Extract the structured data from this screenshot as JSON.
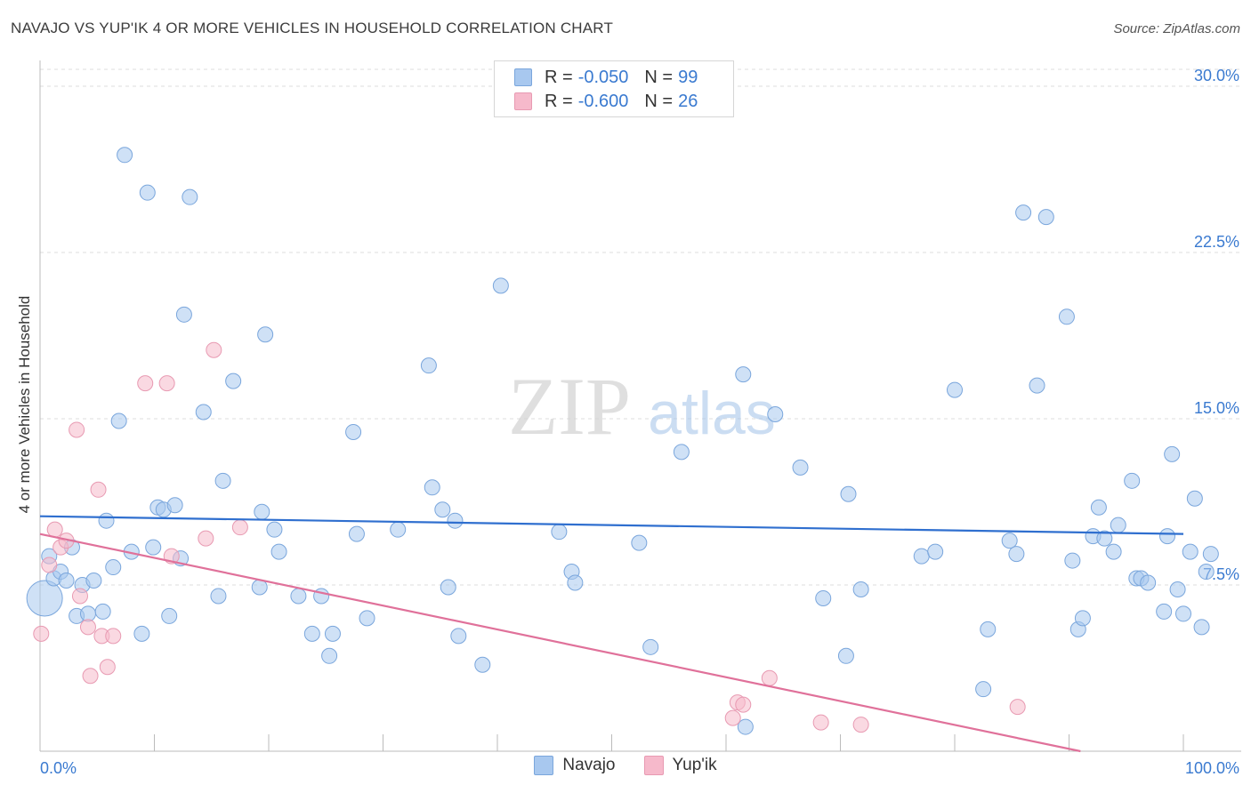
{
  "header": {
    "title": "NAVAJO VS YUP'IK 4 OR MORE VEHICLES IN HOUSEHOLD CORRELATION CHART",
    "source": "Source: ZipAtlas.com"
  },
  "watermark": {
    "zip": "ZIP",
    "atlas": "atlas"
  },
  "legend": {
    "rows": [
      {
        "r_label": "R =",
        "r_value": "-0.050",
        "n_label": "N =",
        "n_value": "99",
        "color": "#a8c8ef"
      },
      {
        "r_label": "R =",
        "r_value": "-0.600",
        "n_label": "N =",
        "n_value": "26",
        "color": "#f6b9cb"
      }
    ]
  },
  "chart_data": {
    "type": "scatter",
    "title": "NAVAJO VS YUP'IK 4 OR MORE VEHICLES IN HOUSEHOLD CORRELATION CHART",
    "xlabel": "",
    "ylabel": "4 or more Vehicles in Household",
    "xlim": [
      0,
      100
    ],
    "ylim": [
      0,
      31
    ],
    "x_tick_labels": [
      "0.0%",
      "100.0%"
    ],
    "y_ticks": [
      7.5,
      15.0,
      22.5,
      30.0
    ],
    "y_tick_labels": [
      "7.5%",
      "15.0%",
      "22.5%",
      "30.0%"
    ],
    "grid": true,
    "legend_position": "top-center",
    "series": [
      {
        "name": "Navajo",
        "color": "#a8c8ef",
        "stroke": "#7aa6dc",
        "trend": {
          "x": [
            0,
            100
          ],
          "y": [
            10.6,
            9.8
          ],
          "color": "#2f6fcf"
        },
        "points": [
          [
            0.4,
            6.9
          ],
          [
            0.8,
            8.8
          ],
          [
            1.2,
            7.8
          ],
          [
            1.8,
            8.1
          ],
          [
            2.3,
            7.7
          ],
          [
            2.8,
            9.2
          ],
          [
            3.2,
            6.1
          ],
          [
            3.7,
            7.5
          ],
          [
            4.2,
            6.2
          ],
          [
            4.7,
            7.7
          ],
          [
            5.5,
            6.3
          ],
          [
            5.8,
            10.4
          ],
          [
            6.4,
            8.3
          ],
          [
            6.9,
            14.9
          ],
          [
            7.4,
            26.9
          ],
          [
            8.0,
            9.0
          ],
          [
            8.9,
            5.3
          ],
          [
            9.4,
            25.2
          ],
          [
            9.9,
            9.2
          ],
          [
            10.3,
            11.0
          ],
          [
            10.8,
            10.9
          ],
          [
            11.3,
            6.1
          ],
          [
            11.8,
            11.1
          ],
          [
            12.3,
            8.7
          ],
          [
            12.6,
            19.7
          ],
          [
            13.1,
            25.0
          ],
          [
            14.3,
            15.3
          ],
          [
            15.6,
            7.0
          ],
          [
            16.0,
            12.2
          ],
          [
            16.9,
            16.7
          ],
          [
            19.2,
            7.4
          ],
          [
            19.4,
            10.8
          ],
          [
            19.7,
            18.8
          ],
          [
            20.5,
            10.0
          ],
          [
            20.9,
            9.0
          ],
          [
            22.6,
            7.0
          ],
          [
            23.8,
            5.3
          ],
          [
            24.6,
            7.0
          ],
          [
            25.3,
            4.3
          ],
          [
            25.6,
            5.3
          ],
          [
            27.4,
            14.4
          ],
          [
            27.7,
            9.8
          ],
          [
            28.6,
            6.0
          ],
          [
            31.3,
            10.0
          ],
          [
            34.0,
            17.4
          ],
          [
            34.3,
            11.9
          ],
          [
            35.2,
            10.9
          ],
          [
            35.7,
            7.4
          ],
          [
            36.3,
            10.4
          ],
          [
            36.6,
            5.2
          ],
          [
            38.7,
            3.9
          ],
          [
            40.3,
            21.0
          ],
          [
            45.4,
            9.9
          ],
          [
            46.5,
            8.1
          ],
          [
            46.8,
            7.6
          ],
          [
            52.4,
            9.4
          ],
          [
            53.4,
            4.7
          ],
          [
            56.1,
            13.5
          ],
          [
            61.5,
            17.0
          ],
          [
            61.7,
            1.1
          ],
          [
            64.3,
            15.2
          ],
          [
            66.5,
            12.8
          ],
          [
            68.5,
            6.9
          ],
          [
            70.5,
            4.3
          ],
          [
            70.7,
            11.6
          ],
          [
            71.8,
            7.3
          ],
          [
            77.1,
            8.8
          ],
          [
            78.3,
            9.0
          ],
          [
            80.0,
            16.3
          ],
          [
            82.5,
            2.8
          ],
          [
            82.9,
            5.5
          ],
          [
            84.8,
            9.5
          ],
          [
            85.4,
            8.9
          ],
          [
            86.0,
            24.3
          ],
          [
            87.2,
            16.5
          ],
          [
            88.0,
            24.1
          ],
          [
            89.8,
            19.6
          ],
          [
            90.3,
            8.6
          ],
          [
            90.8,
            5.5
          ],
          [
            91.2,
            6.0
          ],
          [
            92.1,
            9.7
          ],
          [
            92.6,
            11.0
          ],
          [
            93.1,
            9.6
          ],
          [
            93.9,
            9.0
          ],
          [
            94.3,
            10.2
          ],
          [
            95.5,
            12.2
          ],
          [
            95.9,
            7.8
          ],
          [
            96.3,
            7.8
          ],
          [
            96.9,
            7.6
          ],
          [
            98.3,
            6.3
          ],
          [
            98.6,
            9.7
          ],
          [
            99.0,
            13.4
          ],
          [
            99.5,
            7.3
          ],
          [
            100.0,
            6.2
          ],
          [
            100.6,
            9.0
          ],
          [
            101.0,
            11.4
          ],
          [
            101.6,
            5.6
          ],
          [
            102.0,
            8.1
          ],
          [
            102.4,
            8.9
          ]
        ]
      },
      {
        "name": "Yup'ik",
        "color": "#f6b9cb",
        "stroke": "#e89ab2",
        "trend": {
          "x": [
            0,
            91
          ],
          "y": [
            9.8,
            0.0
          ],
          "color": "#e0719a"
        },
        "points": [
          [
            0.1,
            5.3
          ],
          [
            0.8,
            8.4
          ],
          [
            1.3,
            10.0
          ],
          [
            1.8,
            9.2
          ],
          [
            2.3,
            9.5
          ],
          [
            3.2,
            14.5
          ],
          [
            3.5,
            7.0
          ],
          [
            4.2,
            5.6
          ],
          [
            4.4,
            3.4
          ],
          [
            5.1,
            11.8
          ],
          [
            5.4,
            5.2
          ],
          [
            5.9,
            3.8
          ],
          [
            6.4,
            5.2
          ],
          [
            9.2,
            16.6
          ],
          [
            11.1,
            16.6
          ],
          [
            11.5,
            8.8
          ],
          [
            14.5,
            9.6
          ],
          [
            15.2,
            18.1
          ],
          [
            17.5,
            10.1
          ],
          [
            60.6,
            1.5
          ],
          [
            61.0,
            2.2
          ],
          [
            61.5,
            2.1
          ],
          [
            63.8,
            3.3
          ],
          [
            68.3,
            1.3
          ],
          [
            71.8,
            1.2
          ],
          [
            85.5,
            2.0
          ]
        ]
      }
    ]
  },
  "bottom_legend": {
    "items": [
      {
        "label": "Navajo",
        "color": "#a8c8ef",
        "border": "#7aa6dc"
      },
      {
        "label": "Yup'ik",
        "color": "#f6b9cb",
        "border": "#e89ab2"
      }
    ]
  }
}
